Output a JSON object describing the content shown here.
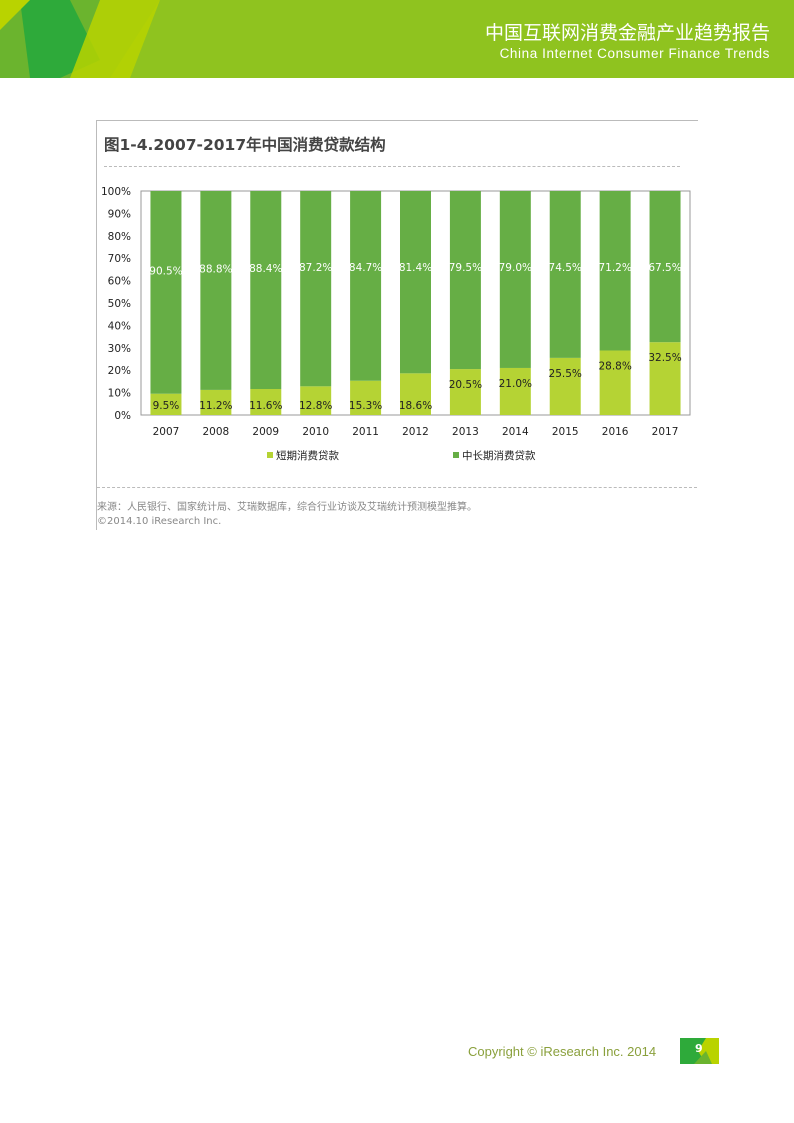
{
  "header": {
    "title": "中国互联网消费金融产业趋势报告",
    "subtitle": "China Internet Consumer Finance Trends"
  },
  "figure": {
    "title": "图1-4.2007-2017年中国消费贷款结构",
    "source": "来源：人民银行、国家统计局、艾瑞数据库，综合行业访谈及艾瑞统计预测模型推算。",
    "copyright": "©2014.10 iResearch Inc."
  },
  "chart_data": {
    "type": "bar",
    "stacked": true,
    "title": "图1-4.2007-2017年中国消费贷款结构",
    "categories": [
      "2007",
      "2008",
      "2009",
      "2010",
      "2011",
      "2012",
      "2013",
      "2014",
      "2015",
      "2016",
      "2017"
    ],
    "series": [
      {
        "name": "短期消费贷款",
        "color": "#b5d334",
        "values": [
          9.5,
          11.2,
          11.6,
          12.8,
          15.3,
          18.6,
          20.5,
          21.0,
          25.5,
          28.8,
          32.5
        ],
        "labels": [
          "9.5%",
          "11.2%",
          "11.6%",
          "12.8%",
          "15.3%",
          "18.6%",
          "20.5%",
          "21.0%",
          "25.5%",
          "28.8%",
          "32.5%"
        ]
      },
      {
        "name": "中长期消费贷款",
        "color": "#66ae45",
        "values": [
          90.5,
          88.8,
          88.4,
          87.2,
          84.7,
          81.4,
          79.5,
          79.0,
          74.5,
          71.2,
          67.5
        ],
        "labels": [
          "90.5%",
          "88.8%",
          "88.4%",
          "87.2%",
          "84.7%",
          "81.4%",
          "79.5%",
          "79.0%",
          "74.5%",
          "71.2%",
          "67.5%"
        ]
      }
    ],
    "yticks": [
      "0%",
      "10%",
      "20%",
      "30%",
      "40%",
      "50%",
      "60%",
      "70%",
      "80%",
      "90%",
      "100%"
    ],
    "ylim": [
      0,
      100
    ],
    "legend": "bottom",
    "grid": false
  },
  "footer": {
    "copyright": "Copyright © iResearch Inc. 2014",
    "page": "9"
  }
}
